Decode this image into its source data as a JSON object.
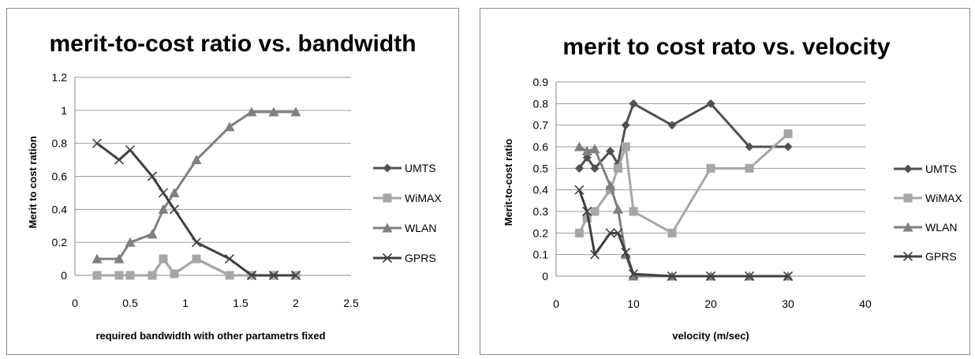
{
  "chart_data": [
    {
      "type": "line",
      "title": "merit-to-cost ratio vs. bandwidth",
      "xlabel": "required bandwidth with other partametrs fixed",
      "ylabel": "Merit to cost ration",
      "xlim": [
        0,
        2.5
      ],
      "ylim": [
        0,
        1.2
      ],
      "xticks": [
        0,
        0.5,
        1,
        1.5,
        2,
        2.5
      ],
      "xtick_labels": [
        "0",
        "0.5",
        "1",
        "1.5",
        "2",
        "2.5"
      ],
      "yticks": [
        0,
        0.2,
        0.4,
        0.6,
        0.8,
        1,
        1.2
      ],
      "ytick_labels": [
        "0",
        "0.2",
        "0.4",
        "0.6",
        "0.8",
        "1",
        "1.2"
      ],
      "grid": "horizontal",
      "legend_position": "right",
      "series": [
        {
          "name": "UMTS",
          "marker": "diamond",
          "color": "#505050",
          "x": [
            0.2,
            0.4,
            0.5,
            0.7,
            0.8,
            0.9,
            1.1,
            1.4,
            1.6,
            1.8,
            2
          ],
          "y": [
            0,
            0,
            0,
            0,
            0.1,
            0.01,
            0.1,
            0,
            0,
            0,
            0
          ]
        },
        {
          "name": "WiMAX",
          "marker": "square",
          "color": "#a6a6a6",
          "x": [
            0.2,
            0.4,
            0.5,
            0.7,
            0.8,
            0.9,
            1.1,
            1.4,
            1.6,
            1.8,
            2
          ],
          "y": [
            0,
            0,
            0,
            0,
            0.1,
            0.01,
            0.1,
            0,
            0,
            0,
            0
          ]
        },
        {
          "name": "WLAN",
          "marker": "triangle",
          "color": "#7f7f7f",
          "x": [
            0.2,
            0.4,
            0.5,
            0.7,
            0.8,
            0.9,
            1.1,
            1.4,
            1.6,
            1.8,
            2
          ],
          "y": [
            0.1,
            0.1,
            0.2,
            0.25,
            0.4,
            0.5,
            0.7,
            0.9,
            0.99,
            0.99,
            0.99
          ]
        },
        {
          "name": "GPRS",
          "marker": "x",
          "color": "#404040",
          "x": [
            0.2,
            0.4,
            0.5,
            0.7,
            0.8,
            0.9,
            1.1,
            1.4,
            1.6,
            1.8,
            2
          ],
          "y": [
            0.8,
            0.7,
            0.76,
            0.6,
            0.5,
            0.4,
            0.2,
            0.1,
            0,
            0,
            0
          ]
        }
      ]
    },
    {
      "type": "line",
      "title": "merit to cost rato vs. velocity",
      "xlabel": "velocity (m/sec)",
      "ylabel": "Merit-to-cost ratio",
      "xlim": [
        0,
        40
      ],
      "ylim": [
        0,
        0.9
      ],
      "xticks": [
        0,
        10,
        20,
        30,
        40
      ],
      "xtick_labels": [
        "0",
        "10",
        "20",
        "30",
        "40"
      ],
      "yticks": [
        0,
        0.1,
        0.2,
        0.3,
        0.4,
        0.5,
        0.6,
        0.7,
        0.8,
        0.9
      ],
      "ytick_labels": [
        "0",
        "0.1",
        "0.2",
        "0.3",
        "0.4",
        "0.5",
        "0.6",
        "0.7",
        "0.8",
        "0.9"
      ],
      "grid": "horizontal",
      "legend_position": "right",
      "series": [
        {
          "name": "UMTS",
          "marker": "diamond",
          "color": "#505050",
          "x": [
            3,
            4,
            5,
            7,
            8,
            9,
            10,
            15,
            20,
            25,
            30
          ],
          "y": [
            0.5,
            0.55,
            0.5,
            0.58,
            0.52,
            0.7,
            0.8,
            0.7,
            0.8,
            0.6,
            0.6
          ]
        },
        {
          "name": "WiMAX",
          "marker": "square",
          "color": "#a6a6a6",
          "x": [
            3,
            4,
            5,
            7,
            8,
            9,
            10,
            15,
            20,
            25,
            30
          ],
          "y": [
            0.2,
            0.27,
            0.3,
            0.4,
            0.5,
            0.6,
            0.3,
            0.2,
            0.5,
            0.5,
            0.66
          ]
        },
        {
          "name": "WLAN",
          "marker": "triangle",
          "color": "#7f7f7f",
          "x": [
            3,
            4,
            5,
            7,
            8,
            9,
            10,
            15,
            20,
            25,
            30
          ],
          "y": [
            0.6,
            0.58,
            0.59,
            0.42,
            0.31,
            0.1,
            0,
            0,
            0,
            0,
            0
          ]
        },
        {
          "name": "GPRS",
          "marker": "x",
          "color": "#404040",
          "x": [
            3,
            4,
            5,
            7,
            8,
            9,
            10,
            15,
            20,
            25,
            30
          ],
          "y": [
            0.4,
            0.3,
            0.1,
            0.2,
            0.2,
            0.11,
            0.01,
            0,
            0,
            0,
            0
          ]
        }
      ]
    }
  ]
}
